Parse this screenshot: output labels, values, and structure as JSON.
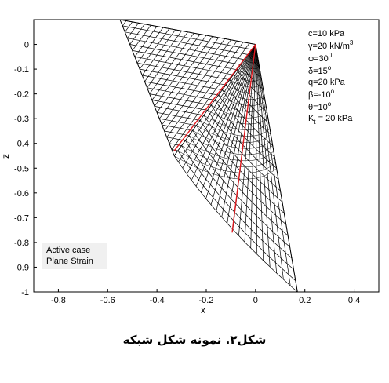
{
  "chart_data": {
    "type": "line",
    "title": "",
    "xlabel": "x",
    "ylabel": "z",
    "xlim": [
      -0.9,
      0.5
    ],
    "ylim": [
      -1.0,
      0.1
    ],
    "xticks": [
      "-0.8",
      "-0.6",
      "-0.4",
      "-0.2",
      "0",
      "0.2",
      "0.4"
    ],
    "yticks": [
      "0",
      "-0.1",
      "-0.2",
      "-0.3",
      "-0.4",
      "-0.5",
      "-0.6",
      "-0.7",
      "-0.8",
      "-0.9",
      "-1"
    ],
    "grid": false,
    "mesh": {
      "apex": [
        0.0,
        0.0
      ],
      "top_left": [
        -0.55,
        0.1
      ],
      "left_corner": [
        -0.33,
        -0.45
      ],
      "bottom_tip": [
        0.17,
        -1.0
      ],
      "color": "#000000"
    },
    "characteristics": [
      {
        "color": "#e0191e",
        "x": [
          -0.33,
          0.0
        ],
        "y": [
          -0.43,
          0.0
        ]
      },
      {
        "color": "#e0191e",
        "x": [
          -0.095,
          0.0
        ],
        "y": [
          -0.76,
          0.0
        ]
      }
    ],
    "parameters": [
      {
        "text": "c=10 kPa"
      },
      {
        "text": "γ=20 kN/m",
        "sup": "3"
      },
      {
        "text": "φ=30",
        "sup": "0"
      },
      {
        "text": "δ=15",
        "sup": "o"
      },
      {
        "text": "q=20 kPa"
      },
      {
        "text": "β=-10",
        "sup": "o"
      },
      {
        "text": "θ=10",
        "sup": "o"
      },
      {
        "text": "K",
        "sub": "t",
        "suffix": " = 20 kPa"
      }
    ],
    "case_box": {
      "line1": "Active case",
      "line2": "Plane Strain",
      "background": "#f0f0f0"
    }
  },
  "caption": "شکل۲. نمونه شکل شبکه"
}
